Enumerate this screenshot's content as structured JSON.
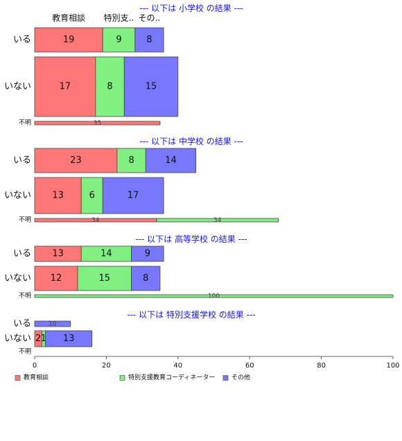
{
  "chart_data": {
    "type": "bar",
    "orientation": "horizontal",
    "stacked": true,
    "xlim": [
      0,
      100
    ],
    "xticks": [
      "0",
      "20",
      "40",
      "60",
      "80",
      "100"
    ],
    "series_names": [
      "教育相談",
      "特別支援教育コーディネーター",
      "その他"
    ],
    "column_headers": [
      "教育相談",
      "特別支..",
      "その.."
    ],
    "colors": [
      "#ff7777",
      "#80f080",
      "#7777ff"
    ],
    "panels": [
      {
        "title": "--- 以下は 小学校 の結果 ---",
        "rows": [
          {
            "label": "いる",
            "values": [
              19,
              9,
              8
            ]
          },
          {
            "label": "いない",
            "values": [
              17,
              8,
              15
            ]
          },
          {
            "label": "不明",
            "values": [
              35,
              0,
              0
            ]
          }
        ]
      },
      {
        "title": "--- 以下は 中学校 の結果 ---",
        "rows": [
          {
            "label": "いる",
            "values": [
              23,
              8,
              14
            ]
          },
          {
            "label": "いない",
            "values": [
              13,
              6,
              17
            ]
          },
          {
            "label": "不明",
            "values": [
              34,
              34,
              0
            ]
          }
        ]
      },
      {
        "title": "--- 以下は 高等学校 の結果 ---",
        "rows": [
          {
            "label": "いる",
            "values": [
              13,
              14,
              9
            ]
          },
          {
            "label": "いない",
            "values": [
              12,
              15,
              8
            ]
          },
          {
            "label": "不明",
            "values": [
              0,
              100,
              0
            ]
          }
        ]
      },
      {
        "title": "--- 以下は 特別支援学校 の結果 ---",
        "rows": [
          {
            "label": "いる",
            "values": [
              0,
              0,
              10
            ]
          },
          {
            "label": "いない",
            "values": [
              2,
              1,
              13
            ]
          },
          {
            "label": "不明",
            "values": [
              0,
              0,
              0
            ]
          }
        ]
      }
    ],
    "legend": [
      "教育相談",
      "特別支援教育コーディネーター",
      "その他"
    ],
    "legend_position": "bottom",
    "title_color": "#1a1adb"
  }
}
